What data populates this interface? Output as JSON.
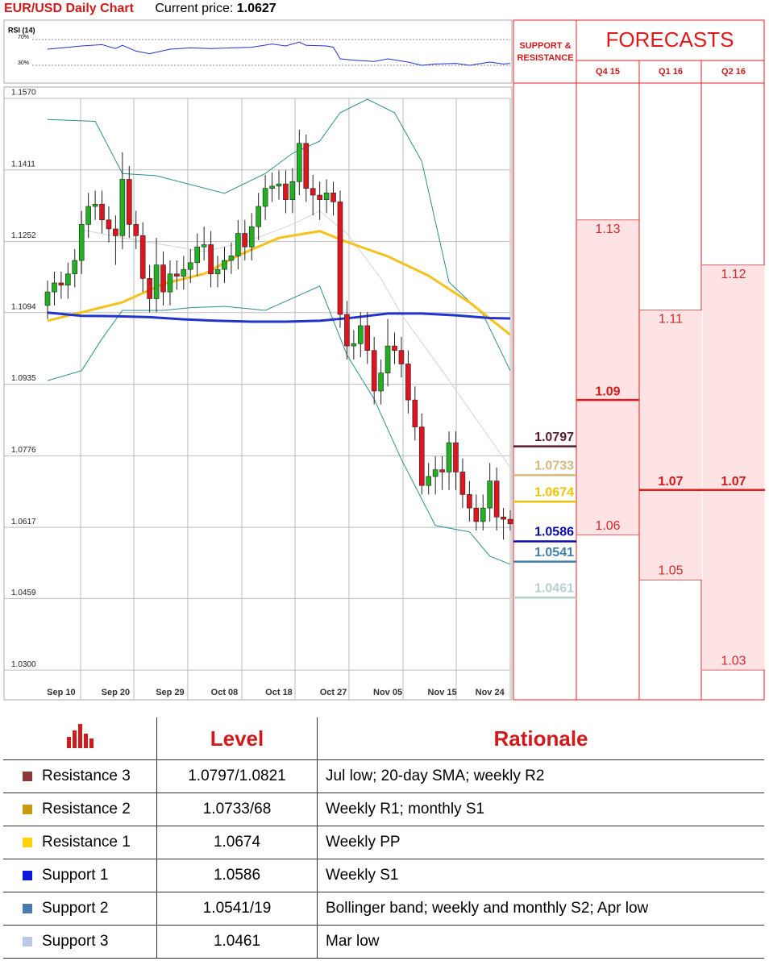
{
  "header": {
    "title": "EUR/USD Daily Chart",
    "price_label": "Current price:",
    "price": 1.0627
  },
  "chart_data": [
    {
      "type": "line",
      "title": "RSI (14)",
      "color": "#2233cc",
      "x": [
        0,
        3,
        5,
        8,
        10,
        11,
        13,
        15,
        18,
        21,
        24,
        27,
        30,
        33,
        35,
        37,
        38,
        41,
        42,
        43,
        45,
        48,
        50,
        53,
        55,
        57,
        60,
        62,
        65,
        67,
        68
      ],
      "values": [
        55,
        58,
        60,
        62,
        56,
        61,
        52,
        48,
        55,
        57,
        56,
        57,
        58,
        63,
        60,
        66,
        61,
        60,
        58,
        40,
        38,
        36,
        40,
        35,
        30,
        32,
        33,
        30,
        35,
        32,
        33
      ],
      "ylim": [
        0,
        100
      ],
      "yticks": [
        {
          "value": 70,
          "label": "70%"
        },
        {
          "value": 30,
          "label": "30%"
        }
      ],
      "grid": true
    },
    {
      "type": "candlestick",
      "up_color": "#22b022",
      "down_color": "#e0141e",
      "categories": [
        null,
        null,
        "Sep 10",
        null,
        null,
        null,
        null,
        null,
        null,
        null,
        "Sep 20",
        null,
        null,
        null,
        null,
        null,
        null,
        null,
        "Sep 29",
        null,
        null,
        null,
        null,
        null,
        null,
        null,
        "Oct 08",
        null,
        null,
        null,
        null,
        null,
        null,
        null,
        "Oct 18",
        null,
        null,
        null,
        null,
        null,
        null,
        null,
        "Oct 27",
        null,
        null,
        null,
        null,
        null,
        null,
        null,
        "Nov 05",
        null,
        null,
        null,
        null,
        null,
        null,
        null,
        "Nov 15",
        null,
        null,
        null,
        null,
        null,
        null,
        "Nov 24",
        null,
        null,
        null
      ],
      "open": [
        1.111,
        1.114,
        1.116,
        1.1155,
        1.118,
        1.121,
        1.129,
        1.133,
        1.1335,
        1.13,
        1.128,
        1.1265,
        1.139,
        1.129,
        1.1265,
        1.117,
        1.1125,
        1.12,
        1.114,
        1.118,
        1.1175,
        1.119,
        1.1205,
        1.124,
        1.1245,
        1.118,
        1.119,
        1.121,
        1.122,
        1.127,
        1.124,
        1.1285,
        1.133,
        1.137,
        1.1375,
        1.138,
        1.1345,
        1.1385,
        1.147,
        1.137,
        1.1355,
        1.1345,
        1.136,
        1.134,
        1.109,
        1.102,
        1.1025,
        1.1065,
        1.101,
        1.092,
        1.096,
        1.102,
        1.101,
        1.098,
        1.09,
        1.084,
        1.071,
        1.073,
        1.0745,
        1.074,
        1.0805,
        1.074,
        1.069,
        1.066,
        1.063,
        1.066,
        1.072,
        1.064,
        1.0635
      ],
      "high": [
        1.1165,
        1.1185,
        1.1185,
        1.1205,
        1.1235,
        1.132,
        1.136,
        1.1365,
        1.1365,
        1.133,
        1.131,
        1.145,
        1.142,
        1.132,
        1.1295,
        1.12,
        1.126,
        1.123,
        1.121,
        1.121,
        1.122,
        1.1235,
        1.127,
        1.1285,
        1.1275,
        1.122,
        1.124,
        1.125,
        1.13,
        1.13,
        1.1315,
        1.136,
        1.14,
        1.1405,
        1.141,
        1.141,
        1.1415,
        1.15,
        1.149,
        1.14,
        1.1385,
        1.139,
        1.1385,
        1.1365,
        1.112,
        1.1055,
        1.1095,
        1.1095,
        1.104,
        1.099,
        1.108,
        1.105,
        1.104,
        1.101,
        1.093,
        1.087,
        1.076,
        1.0775,
        1.0775,
        1.083,
        1.083,
        1.077,
        1.072,
        1.069,
        1.069,
        1.076,
        1.075,
        1.066,
        1.0655
      ],
      "low": [
        1.108,
        1.111,
        1.1125,
        1.1125,
        1.115,
        1.118,
        1.126,
        1.13,
        1.127,
        1.125,
        1.12,
        1.1235,
        1.126,
        1.1235,
        1.114,
        1.1095,
        1.1095,
        1.111,
        1.111,
        1.1145,
        1.1145,
        1.116,
        1.1175,
        1.121,
        1.115,
        1.115,
        1.116,
        1.118,
        1.119,
        1.121,
        1.121,
        1.1255,
        1.13,
        1.134,
        1.1345,
        1.1315,
        1.1315,
        1.1355,
        1.134,
        1.131,
        1.13,
        1.1315,
        1.131,
        1.106,
        1.099,
        1.099,
        1.0995,
        1.098,
        1.089,
        1.089,
        1.093,
        1.098,
        1.095,
        1.087,
        1.081,
        1.069,
        1.069,
        1.069,
        1.07,
        1.07,
        1.07,
        1.066,
        1.063,
        1.061,
        1.061,
        1.063,
        1.061,
        1.059,
        1.061
      ],
      "close": [
        1.114,
        1.116,
        1.1155,
        1.118,
        1.121,
        1.129,
        1.133,
        1.1335,
        1.13,
        1.128,
        1.1265,
        1.139,
        1.129,
        1.1265,
        1.117,
        1.1125,
        1.12,
        1.114,
        1.118,
        1.1175,
        1.119,
        1.1205,
        1.124,
        1.1245,
        1.118,
        1.119,
        1.121,
        1.122,
        1.127,
        1.124,
        1.1285,
        1.133,
        1.137,
        1.1375,
        1.138,
        1.1345,
        1.1385,
        1.147,
        1.137,
        1.1355,
        1.1345,
        1.136,
        1.134,
        1.109,
        1.102,
        1.1025,
        1.1065,
        1.101,
        1.092,
        1.096,
        1.102,
        1.101,
        1.098,
        1.09,
        1.084,
        1.071,
        1.073,
        1.0745,
        1.074,
        1.0805,
        1.074,
        1.069,
        1.066,
        1.063,
        1.066,
        1.072,
        1.064,
        1.0635,
        1.0625
      ],
      "series": [
        {
          "color": "#d4d4d4",
          "width": 1,
          "x": [
            5,
            13,
            23,
            29,
            36,
            40,
            44,
            49,
            52,
            58,
            68
          ],
          "values": [
            1.1278,
            1.1255,
            1.123,
            1.125,
            1.129,
            1.132,
            1.127,
            1.117,
            1.109,
            1.0965,
            1.075
          ]
        },
        {
          "color": "#2a8f8a",
          "width": 1,
          "x": [
            0,
            7,
            11,
            16,
            26,
            32,
            36,
            40,
            43,
            47,
            51,
            55,
            59,
            64,
            68
          ],
          "values": [
            1.1523,
            1.1519,
            1.1403,
            1.1398,
            1.1359,
            1.1403,
            1.1448,
            1.1475,
            1.1538,
            1.1568,
            1.1538,
            1.143,
            1.1162,
            1.109,
            1.0965
          ]
        },
        {
          "color": "#2a8f8a",
          "width": 1,
          "x": [
            0,
            5,
            8,
            11,
            17,
            21,
            26,
            32,
            36,
            40,
            44,
            48,
            52,
            57,
            62,
            65,
            68
          ],
          "values": [
            1.0943,
            1.0965,
            1.1036,
            1.1099,
            1.1099,
            1.1105,
            1.1108,
            1.1099,
            1.1126,
            1.1153,
            1.1,
            1.0902,
            1.0768,
            1.0621,
            1.0607,
            1.0553,
            1.0535
          ]
        },
        {
          "color": "#f5c21b",
          "width": 3,
          "x": [
            0,
            11,
            17,
            23,
            28,
            34,
            40,
            44,
            50,
            56,
            62,
            68
          ],
          "values": [
            1.1076,
            1.1117,
            1.1158,
            1.118,
            1.1221,
            1.126,
            1.1275,
            1.1251,
            1.1219,
            1.1176,
            1.1117,
            1.1045
          ]
        },
        {
          "color": "#2233cc",
          "width": 3,
          "x": [
            0,
            5,
            10,
            15,
            20,
            25,
            30,
            35,
            40,
            45,
            50,
            55,
            60,
            65,
            68
          ],
          "values": [
            1.1094,
            1.1087,
            1.1086,
            1.1084,
            1.1079,
            1.1076,
            1.1074,
            1.1074,
            1.1076,
            1.1083,
            1.1092,
            1.1092,
            1.1088,
            1.1082,
            1.1081
          ]
        }
      ],
      "ylim": [
        1.0234,
        1.157
      ],
      "yticks": [
        {
          "value": 1.157,
          "label": "1.1570"
        },
        1.1411,
        1.1252,
        1.1094,
        1.0935,
        1.0776,
        1.0617,
        1.0459,
        {
          "value": 1.03,
          "label": "1.0300"
        }
      ],
      "grid": true
    }
  ],
  "support_resistance": {
    "title": "SUPPORT & RESISTANCE",
    "levels": [
      {
        "value": 1.0797,
        "color": "#5a1a2e"
      },
      {
        "value": 1.0733,
        "color": "#d8b77c"
      },
      {
        "value": 1.0674,
        "color": "#f2c200"
      },
      {
        "value": 1.0586,
        "color": "#0a0aa8"
      },
      {
        "value": 1.0541,
        "color": "#3f7fa8"
      },
      {
        "value": 1.0461,
        "color": "#b6d0d0"
      }
    ]
  },
  "forecasts": {
    "title": "FORECASTS",
    "columns": [
      {
        "label": "Q4 15",
        "high": 1.13,
        "mid": 1.09,
        "low": 1.06
      },
      {
        "label": "Q1 16",
        "high": 1.11,
        "mid": 1.07,
        "low": 1.05
      },
      {
        "label": "Q2 16",
        "high": 1.12,
        "mid": 1.07,
        "low": 1.03
      }
    ]
  },
  "table": {
    "headers": [
      "Level",
      "Rationale"
    ],
    "rows": [
      {
        "name": "Resistance 3",
        "color": "#8b3a3a",
        "level": "1.0797/1.0821",
        "rationale": "Jul low; 20-day SMA; weekly R2"
      },
      {
        "name": "Resistance 2",
        "color": "#c99a10",
        "level": "1.0733/68",
        "rationale": "Weekly R1; monthly S1"
      },
      {
        "name": "Resistance 1",
        "color": "#ffd200",
        "level": "1.0674",
        "rationale": "Weekly PP"
      },
      {
        "name": "Support 1",
        "color": "#0a18d8",
        "level": "1.0586",
        "rationale": "Weekly S1"
      },
      {
        "name": "Support 2",
        "color": "#4a7ab0",
        "level": "1.0541/19",
        "rationale": "Bollinger band; weekly and monthly S2; Apr low"
      },
      {
        "name": "Support 3",
        "color": "#b8c8e6",
        "level": "1.0461",
        "rationale": "Mar low"
      }
    ]
  }
}
